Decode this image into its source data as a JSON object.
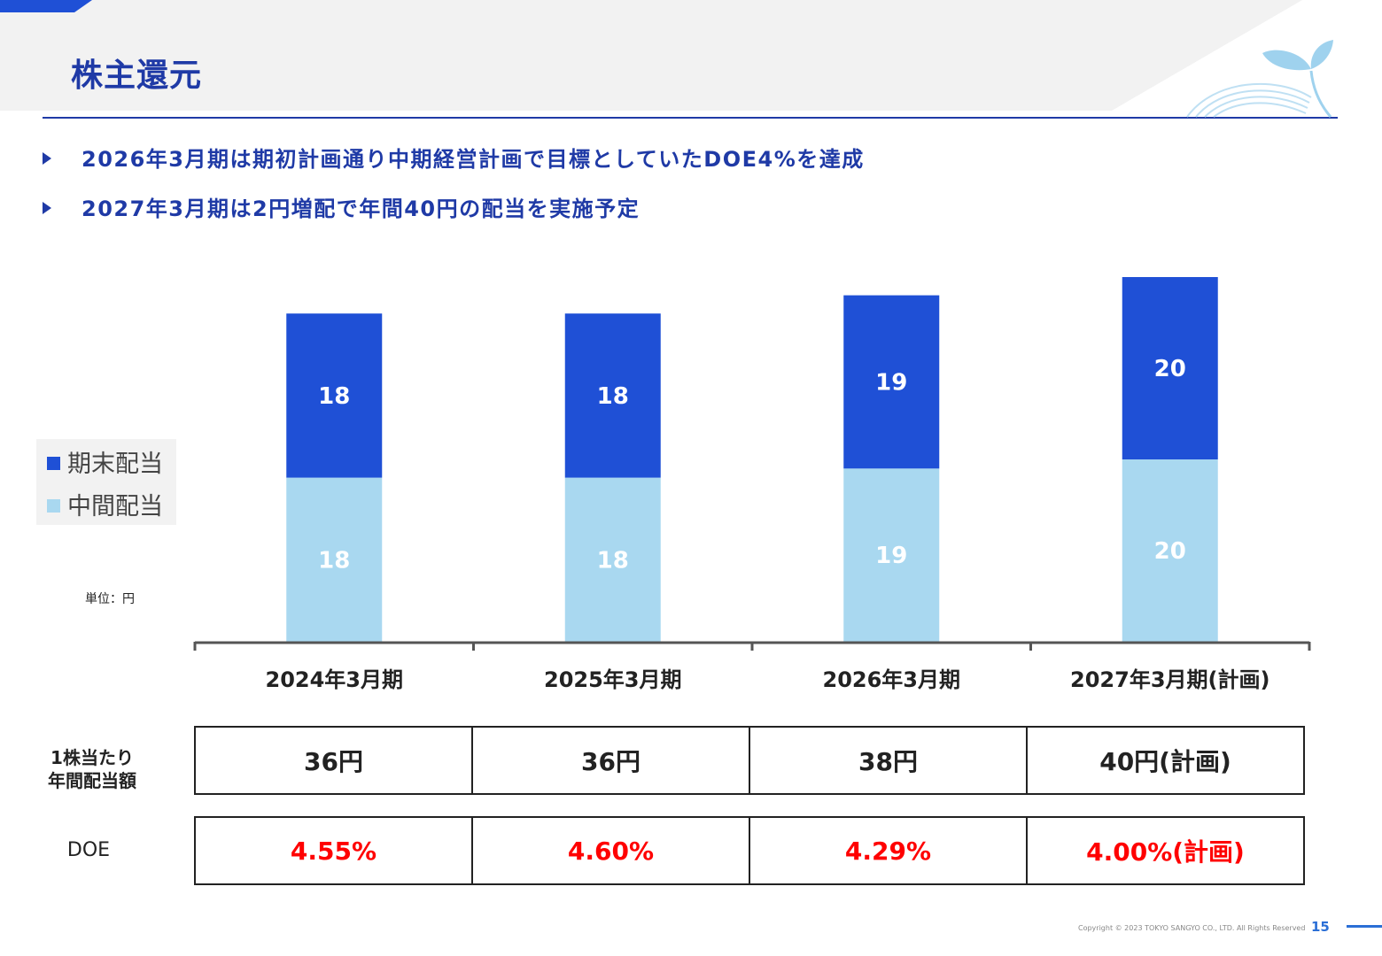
{
  "header": {
    "title": "株主還元"
  },
  "bullets": [
    "2026年3月期は期初計画通り中期経営計画で目標としていたDOE4%を達成",
    "2027年3月期は2円増配で年間40円の配当を実施予定"
  ],
  "legend": {
    "year_end": "期末配当",
    "interim": "中間配当"
  },
  "unit_label": "単位：円",
  "chart_data": {
    "type": "bar",
    "stacked": true,
    "categories": [
      "2024年3月期",
      "2025年3月期",
      "2026年3月期",
      "2027年3月期(計画)"
    ],
    "series": [
      {
        "name": "中間配当",
        "values": [
          18,
          18,
          19,
          20
        ],
        "color": "#a9d8f0",
        "label_color": "#ffffff"
      },
      {
        "name": "期末配当",
        "values": [
          18,
          18,
          19,
          20
        ],
        "color": "#1f50d6",
        "label_color": "#ffffff"
      }
    ],
    "ylim": [
      0,
      40
    ],
    "legend_position": "left",
    "grid": false
  },
  "table": {
    "amount_label_line1": "1株当たり",
    "amount_label_line2": "年間配当額",
    "amounts": [
      "36円",
      "36円",
      "38円",
      "40円(計画)"
    ],
    "doe_label": "DOE",
    "doe": [
      "4.55%",
      "4.60%",
      "4.29%",
      "4.00%(計画)"
    ]
  },
  "footer": {
    "copyright": "Copyright © 2023 TOKYO SANGYO CO., LTD. All Rights Reserved",
    "page_number": "15"
  },
  "colors": {
    "brand_blue": "#1f3aa6",
    "doe_red": "#ff0000",
    "accent": "#2b6fd6"
  }
}
